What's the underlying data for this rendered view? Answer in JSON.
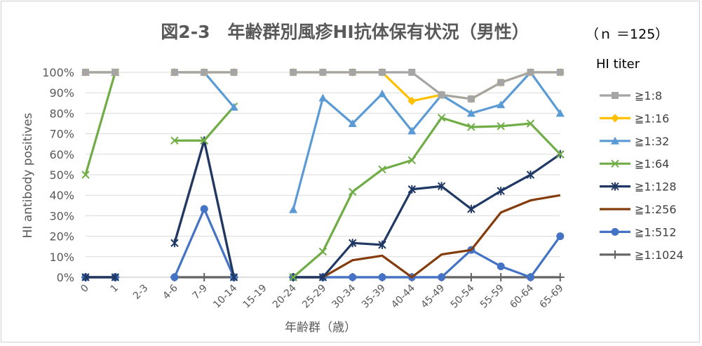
{
  "chart_data": {
    "type": "line",
    "title": "図2-3　年齢群別風疹HI抗体保有状況（男性）",
    "n_label": "（ｎ ＝125）",
    "xlabel": "年齢群（歳）",
    "ylabel": "HI antibody positives",
    "legend_title": "HI titer",
    "legend_position": "right",
    "grid": true,
    "ylim": [
      0,
      100
    ],
    "yticks": [
      "0%",
      "10%",
      "20%",
      "30%",
      "40%",
      "50%",
      "60%",
      "70%",
      "80%",
      "90%",
      "100%"
    ],
    "categories": [
      "0",
      "1",
      "2-3",
      "4-6",
      "7-9",
      "10-14",
      "15-19",
      "20-24",
      "25-29",
      "30-34",
      "35-39",
      "40-44",
      "45-49",
      "50-54",
      "55-59",
      "60-64",
      "65-69"
    ],
    "series": [
      {
        "name": "≧1:8",
        "color": "#a5a5a5",
        "marker": "square",
        "values": [
          100,
          100,
          null,
          100,
          100,
          100,
          null,
          100,
          100,
          100,
          100,
          100,
          89,
          87,
          95,
          100,
          100
        ]
      },
      {
        "name": "≧1:16",
        "color": "#ffc000",
        "marker": "diamond",
        "values": [
          100,
          100,
          null,
          100,
          100,
          100,
          null,
          100,
          100,
          100,
          100,
          86,
          89,
          87,
          95,
          100,
          100
        ]
      },
      {
        "name": "≧1:32",
        "color": "#5b9bd5",
        "marker": "triangle",
        "values": [
          100,
          100,
          null,
          100,
          100,
          83,
          null,
          33,
          87.5,
          75,
          89.5,
          71.4,
          88.9,
          80,
          84.2,
          100,
          80
        ]
      },
      {
        "name": "≧1:64",
        "color": "#70ad47",
        "marker": "x",
        "values": [
          50,
          100,
          null,
          66.7,
          66.7,
          83.3,
          null,
          0,
          12.5,
          41.7,
          52.6,
          57.1,
          77.8,
          73.3,
          73.7,
          75,
          60
        ]
      },
      {
        "name": "≧1:128",
        "color": "#1f3864",
        "marker": "star",
        "values": [
          0,
          0,
          null,
          16.7,
          66.7,
          0,
          null,
          0,
          0,
          16.7,
          15.8,
          42.9,
          44.4,
          33.3,
          42.1,
          50,
          60
        ]
      },
      {
        "name": "≧1:256",
        "color": "#843c0c",
        "marker": "none",
        "values": [
          0,
          0,
          null,
          16.7,
          66.7,
          0,
          null,
          0,
          0,
          8.3,
          10.5,
          0,
          11.1,
          13.3,
          31.6,
          37.5,
          40
        ]
      },
      {
        "name": "≧1:512",
        "color": "#4472c4",
        "marker": "circle",
        "values": [
          0,
          0,
          null,
          0,
          33.3,
          0,
          null,
          0,
          0,
          0,
          0,
          0,
          0,
          13.3,
          5.3,
          0,
          20
        ]
      },
      {
        "name": "≧1:1024",
        "color": "#636363",
        "marker": "plus",
        "values": [
          0,
          0,
          null,
          0,
          0,
          0,
          null,
          0,
          0,
          0,
          0,
          0,
          0,
          0,
          0,
          0,
          0
        ]
      }
    ]
  }
}
